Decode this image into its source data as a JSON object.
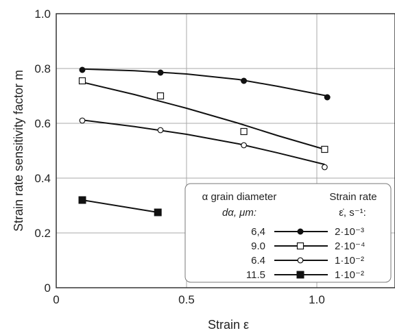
{
  "chart_data": {
    "type": "scatter",
    "title": "",
    "xlabel": "Strain ε",
    "ylabel": "Strain rate sensitivity factor m",
    "xlim": [
      0,
      1.3
    ],
    "ylim": [
      0,
      1.0
    ],
    "x_ticks": [
      "0",
      "0.5",
      "1.0"
    ],
    "x_tick_values": [
      0,
      0.5,
      1.0
    ],
    "y_ticks": [
      "0",
      "0.2",
      "0.4",
      "0.6",
      "0.8",
      "1.0"
    ],
    "y_tick_values": [
      0,
      0.2,
      0.4,
      0.6,
      0.8,
      1.0
    ],
    "grid": true,
    "legend": {
      "placement": "bottom-right",
      "col1_title": "α grain diameter",
      "col1_subtitle": "dα, μm:",
      "col2_title": "Strain rate",
      "col2_subtitle": "ε̇, s⁻¹:"
    },
    "series": [
      {
        "diameter": "6,4",
        "strain_rate": "2·10⁻³",
        "marker": "filled-circle",
        "x": [
          0.1,
          0.4,
          0.72,
          1.04
        ],
        "y": [
          0.795,
          0.785,
          0.755,
          0.695
        ],
        "fit_x": [
          0.1,
          0.3,
          0.5,
          0.7,
          0.85,
          1.04
        ],
        "fit_y": [
          0.798,
          0.792,
          0.78,
          0.76,
          0.735,
          0.7
        ]
      },
      {
        "diameter": "9.0",
        "strain_rate": "2·10⁻⁴",
        "marker": "open-square",
        "x": [
          0.1,
          0.4,
          0.72,
          1.03
        ],
        "y": [
          0.755,
          0.7,
          0.57,
          0.505
        ],
        "fit_x": [
          0.1,
          0.3,
          0.5,
          0.7,
          0.85,
          1.03
        ],
        "fit_y": [
          0.75,
          0.705,
          0.655,
          0.6,
          0.555,
          0.505
        ]
      },
      {
        "diameter": "6.4",
        "strain_rate": "1·10⁻²",
        "marker": "open-circle",
        "x": [
          0.1,
          0.4,
          0.72,
          1.03
        ],
        "y": [
          0.61,
          0.575,
          0.52,
          0.44
        ],
        "fit_x": [
          0.1,
          0.3,
          0.5,
          0.7,
          0.85,
          1.03
        ],
        "fit_y": [
          0.612,
          0.588,
          0.56,
          0.525,
          0.492,
          0.45
        ]
      },
      {
        "diameter": "11.5",
        "strain_rate": "1·10⁻²",
        "marker": "filled-square",
        "x": [
          0.1,
          0.39
        ],
        "y": [
          0.32,
          0.275
        ],
        "fit_x": [
          0.1,
          0.39
        ],
        "fit_y": [
          0.32,
          0.275
        ]
      }
    ]
  }
}
